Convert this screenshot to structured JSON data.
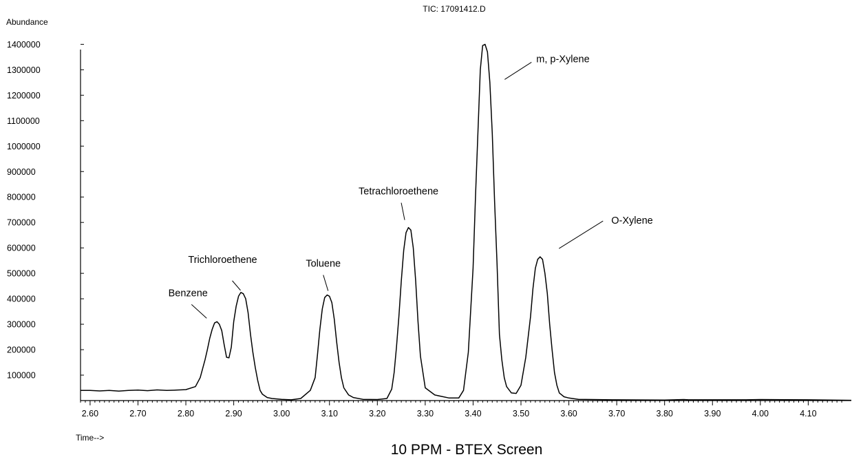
{
  "chart_data": {
    "type": "line",
    "title": "TIC: 17091412.D",
    "subtitle": "10 PPM - BTEX Screen",
    "ylabel": "Abundance",
    "xlabel": "Time-->",
    "xlim": [
      2.58,
      4.19
    ],
    "ylim": [
      0,
      1420000
    ],
    "x_ticks": [
      "2.60",
      "2.70",
      "2.80",
      "2.90",
      "3.00",
      "3.10",
      "3.20",
      "3.30",
      "3.40",
      "3.50",
      "3.60",
      "3.70",
      "3.80",
      "3.90",
      "4.00",
      "4.10"
    ],
    "y_ticks": [
      "100000",
      "200000",
      "300000",
      "400000",
      "500000",
      "600000",
      "700000",
      "800000",
      "900000",
      "1000000",
      "1100000",
      "1200000",
      "1300000",
      "1400000"
    ],
    "grid": false,
    "series": [
      {
        "x": [
          2.58,
          2.6,
          2.62,
          2.64,
          2.66,
          2.68,
          2.7,
          2.72,
          2.74,
          2.76,
          2.78,
          2.8,
          2.82,
          2.83,
          2.84,
          2.845,
          2.85,
          2.855,
          2.86,
          2.865,
          2.87,
          2.875,
          2.88,
          2.885,
          2.89,
          2.895,
          2.9,
          2.905,
          2.91,
          2.915,
          2.92,
          2.925,
          2.93,
          2.935,
          2.94,
          2.945,
          2.95,
          2.955,
          2.96,
          2.97,
          2.98,
          3.0,
          3.02,
          3.04,
          3.06,
          3.07,
          3.075,
          3.08,
          3.085,
          3.09,
          3.095,
          3.1,
          3.105,
          3.11,
          3.115,
          3.12,
          3.125,
          3.13,
          3.14,
          3.15,
          3.17,
          3.2,
          3.22,
          3.23,
          3.235,
          3.24,
          3.245,
          3.25,
          3.255,
          3.26,
          3.265,
          3.27,
          3.275,
          3.28,
          3.285,
          3.29,
          3.3,
          3.32,
          3.35,
          3.37,
          3.38,
          3.39,
          3.4,
          3.405,
          3.41,
          3.415,
          3.42,
          3.425,
          3.43,
          3.435,
          3.44,
          3.445,
          3.45,
          3.455,
          3.46,
          3.465,
          3.47,
          3.48,
          3.49,
          3.5,
          3.51,
          3.52,
          3.525,
          3.53,
          3.535,
          3.54,
          3.545,
          3.55,
          3.555,
          3.56,
          3.565,
          3.57,
          3.575,
          3.58,
          3.59,
          3.6,
          3.62,
          3.65,
          3.7,
          3.8,
          3.84,
          3.85,
          3.9,
          3.97,
          4.0,
          4.1,
          4.19
        ],
        "y": [
          40000,
          40000,
          38000,
          40000,
          37000,
          40000,
          41000,
          39000,
          42000,
          40000,
          41000,
          43000,
          55000,
          90000,
          160000,
          200000,
          245000,
          280000,
          305000,
          310000,
          300000,
          275000,
          220000,
          170000,
          168000,
          210000,
          310000,
          370000,
          410000,
          425000,
          420000,
          400000,
          345000,
          260000,
          190000,
          130000,
          80000,
          40000,
          25000,
          12000,
          8000,
          5000,
          3000,
          8000,
          40000,
          90000,
          180000,
          280000,
          360000,
          405000,
          415000,
          410000,
          385000,
          320000,
          230000,
          150000,
          90000,
          50000,
          22000,
          12000,
          5000,
          4000,
          8000,
          45000,
          110000,
          210000,
          330000,
          470000,
          590000,
          660000,
          680000,
          670000,
          600000,
          470000,
          310000,
          175000,
          50000,
          22000,
          10000,
          10000,
          40000,
          190000,
          520000,
          800000,
          1050000,
          1300000,
          1395000,
          1400000,
          1370000,
          1250000,
          1050000,
          780000,
          540000,
          260000,
          160000,
          90000,
          55000,
          30000,
          28000,
          60000,
          170000,
          330000,
          440000,
          520000,
          555000,
          565000,
          555000,
          500000,
          420000,
          300000,
          200000,
          110000,
          60000,
          30000,
          15000,
          10000,
          5000,
          4000,
          3000,
          2000,
          4000,
          3000,
          3000,
          3000,
          4000,
          3000,
          1000
        ]
      }
    ],
    "annotations": [
      {
        "text": "Benzene",
        "x": 2.865,
        "y": 310000
      },
      {
        "text": "Trichloroethene",
        "x": 2.92,
        "y": 425000
      },
      {
        "text": "Toluene",
        "x": 3.1,
        "y": 415000
      },
      {
        "text": "Tetrachloroethene",
        "x": 3.26,
        "y": 680000
      },
      {
        "text": "m, p-Xylene",
        "x": 3.43,
        "y": 1400000
      },
      {
        "text": "O-Xylene",
        "x": 3.555,
        "y": 565000
      }
    ]
  }
}
